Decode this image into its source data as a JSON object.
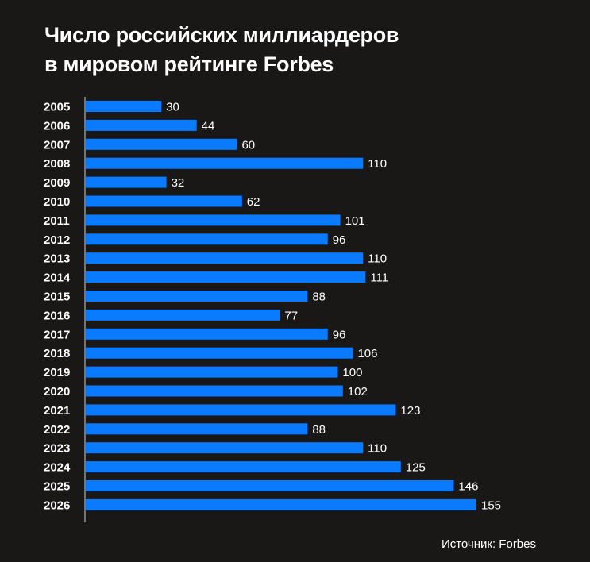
{
  "title_lines": [
    "Число российских миллиардеров",
    "в мировом рейтинге Forbes"
  ],
  "source": "Источник: Forbes",
  "colors": {
    "background": "#1a1817",
    "bar": "#0a7bff",
    "text": "#ffffff",
    "axis": "#cfcfcf"
  },
  "chart_data": {
    "type": "bar",
    "orientation": "horizontal",
    "title": "Число российских миллиардеров в мировом рейтинге Forbes",
    "categories": [
      "2005",
      "2006",
      "2007",
      "2008",
      "2009",
      "2010",
      "2011",
      "2012",
      "2013",
      "2014",
      "2015",
      "2016",
      "2017",
      "2018",
      "2019",
      "2020",
      "2021",
      "2022",
      "2023",
      "2024",
      "2025",
      "2026"
    ],
    "values": [
      30,
      44,
      60,
      110,
      32,
      62,
      101,
      96,
      110,
      111,
      88,
      77,
      96,
      106,
      100,
      102,
      123,
      88,
      110,
      125,
      146,
      155
    ],
    "data_labels": true,
    "grid": false,
    "legend": "none",
    "xlim": [
      0,
      155
    ]
  }
}
